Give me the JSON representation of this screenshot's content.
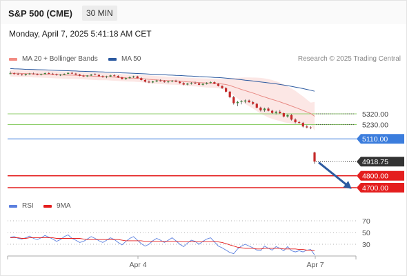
{
  "header": {
    "symbol": "S&P 500 (CME)",
    "timeframe": "30 MIN",
    "datetime": "Monday, April 7, 2025 5:41:18 AM CET",
    "credit": "Research © 2025 Trading Central"
  },
  "legend": {
    "ma20": {
      "label": "MA 20 + Bollinger Bands",
      "color": "#f28b82"
    },
    "ma50": {
      "label": "MA 50",
      "color": "#2c5aa0"
    },
    "rsi": {
      "label": "RSI",
      "color": "#5b7fde"
    },
    "ma9": {
      "label": "9MA",
      "color": "#e41e1e"
    }
  },
  "chart_data": [
    {
      "type": "candlestick",
      "x_ticks": [
        "Apr 4",
        "Apr 7"
      ],
      "levels": [
        {
          "value": 5320.0,
          "label": "5320.00",
          "kind": "resistance-target",
          "color": "#8fce6b"
        },
        {
          "value": 5230.0,
          "label": "5230.00",
          "kind": "resistance-target",
          "color": "#8fce6b"
        },
        {
          "value": 5110.0,
          "label": "5110.00",
          "kind": "pivot",
          "color": "#3b7ddd"
        },
        {
          "value": 4918.75,
          "label": "4918.75",
          "kind": "last-price",
          "color": "#333333"
        },
        {
          "value": 4800.0,
          "label": "4800.00",
          "kind": "support-target",
          "color": "#e41e1e"
        },
        {
          "value": 4700.0,
          "label": "4700.00",
          "kind": "support-target",
          "color": "#e41e1e"
        }
      ],
      "candles": [
        [
          5659,
          5676,
          5653,
          5660
        ],
        [
          5660,
          5668,
          5650,
          5655
        ],
        [
          5655,
          5664,
          5646,
          5650
        ],
        [
          5650,
          5657,
          5641,
          5645
        ],
        [
          5645,
          5658,
          5640,
          5653
        ],
        [
          5653,
          5663,
          5648,
          5658
        ],
        [
          5658,
          5666,
          5650,
          5652
        ],
        [
          5652,
          5660,
          5644,
          5648
        ],
        [
          5648,
          5658,
          5643,
          5654
        ],
        [
          5654,
          5666,
          5650,
          5662
        ],
        [
          5662,
          5670,
          5654,
          5657
        ],
        [
          5657,
          5664,
          5648,
          5652
        ],
        [
          5652,
          5658,
          5641,
          5645
        ],
        [
          5645,
          5654,
          5638,
          5649
        ],
        [
          5649,
          5660,
          5645,
          5656
        ],
        [
          5656,
          5668,
          5652,
          5664
        ],
        [
          5664,
          5672,
          5655,
          5658
        ],
        [
          5658,
          5664,
          5646,
          5650
        ],
        [
          5650,
          5655,
          5636,
          5640
        ],
        [
          5640,
          5648,
          5630,
          5635
        ],
        [
          5635,
          5645,
          5630,
          5642
        ],
        [
          5642,
          5655,
          5638,
          5650
        ],
        [
          5650,
          5660,
          5644,
          5647
        ],
        [
          5647,
          5652,
          5632,
          5636
        ],
        [
          5636,
          5643,
          5624,
          5628
        ],
        [
          5628,
          5640,
          5620,
          5634
        ],
        [
          5634,
          5648,
          5630,
          5643
        ],
        [
          5643,
          5652,
          5634,
          5638
        ],
        [
          5638,
          5644,
          5622,
          5626
        ],
        [
          5626,
          5632,
          5609,
          5612
        ],
        [
          5612,
          5626,
          5606,
          5620
        ],
        [
          5620,
          5634,
          5614,
          5628
        ],
        [
          5628,
          5640,
          5622,
          5634
        ],
        [
          5634,
          5640,
          5618,
          5620
        ],
        [
          5620,
          5628,
          5600,
          5604
        ],
        [
          5604,
          5612,
          5584,
          5590
        ],
        [
          5590,
          5600,
          5578,
          5584
        ],
        [
          5584,
          5598,
          5578,
          5592
        ],
        [
          5592,
          5606,
          5586,
          5600
        ],
        [
          5600,
          5610,
          5590,
          5594
        ],
        [
          5594,
          5602,
          5582,
          5586
        ],
        [
          5586,
          5598,
          5578,
          5592
        ],
        [
          5592,
          5604,
          5586,
          5598
        ],
        [
          5598,
          5606,
          5586,
          5590
        ],
        [
          5590,
          5596,
          5574,
          5578
        ],
        [
          5578,
          5586,
          5560,
          5566
        ],
        [
          5566,
          5580,
          5560,
          5574
        ],
        [
          5574,
          5586,
          5566,
          5580
        ],
        [
          5580,
          5590,
          5570,
          5576
        ],
        [
          5576,
          5584,
          5560,
          5564
        ],
        [
          5564,
          5578,
          5558,
          5572
        ],
        [
          5572,
          5586,
          5566,
          5580
        ],
        [
          5580,
          5592,
          5574,
          5586
        ],
        [
          5586,
          5592,
          5570,
          5572
        ],
        [
          5572,
          5578,
          5550,
          5554
        ],
        [
          5554,
          5560,
          5530,
          5536
        ],
        [
          5536,
          5544,
          5500,
          5506
        ],
        [
          5506,
          5512,
          5452,
          5460
        ],
        [
          5460,
          5470,
          5398,
          5410
        ],
        [
          5410,
          5430,
          5384,
          5420
        ],
        [
          5420,
          5436,
          5400,
          5424
        ],
        [
          5424,
          5440,
          5410,
          5432
        ],
        [
          5432,
          5440,
          5412,
          5418
        ],
        [
          5418,
          5430,
          5396,
          5404
        ],
        [
          5404,
          5412,
          5366,
          5372
        ],
        [
          5372,
          5380,
          5340,
          5350
        ],
        [
          5350,
          5372,
          5338,
          5364
        ],
        [
          5364,
          5376,
          5340,
          5346
        ],
        [
          5346,
          5354,
          5320,
          5328
        ],
        [
          5328,
          5346,
          5316,
          5338
        ],
        [
          5338,
          5352,
          5320,
          5326
        ],
        [
          5326,
          5330,
          5290,
          5298
        ],
        [
          5298,
          5316,
          5288,
          5310
        ],
        [
          5310,
          5318,
          5264,
          5272
        ],
        [
          5272,
          5282,
          5240,
          5250
        ],
        [
          5250,
          5262,
          5236,
          5244
        ],
        [
          5244,
          5252,
          5206,
          5214
        ],
        [
          5214,
          5226,
          5198,
          5206
        ],
        [
          5206,
          5216,
          5192,
          5204
        ],
        [
          4996,
          5002,
          4900,
          4918.75
        ]
      ],
      "ma20": [
        5662,
        5661,
        5660,
        5659,
        5658,
        5657,
        5656,
        5655,
        5654,
        5653,
        5652,
        5650,
        5648,
        5647,
        5646,
        5645,
        5645,
        5644,
        5643,
        5641,
        5639,
        5637,
        5635,
        5634,
        5633,
        5632,
        5630,
        5628,
        5626,
        5624,
        5622,
        5621,
        5620,
        5618,
        5616,
        5613,
        5610,
        5607,
        5605,
        5603,
        5601,
        5599,
        5598,
        5597,
        5595,
        5592,
        5589,
        5587,
        5585,
        5583,
        5581,
        5579,
        5578,
        5577,
        5575,
        5571,
        5566,
        5558,
        5547,
        5536,
        5525,
        5515,
        5505,
        5495,
        5484,
        5472,
        5462,
        5451,
        5441,
        5431,
        5421,
        5409,
        5398,
        5386,
        5374,
        5362,
        5349,
        5336,
        5323,
        5300
      ],
      "bb_upper": [
        5690,
        5690,
        5689,
        5688,
        5687,
        5686,
        5686,
        5685,
        5684,
        5683,
        5682,
        5680,
        5678,
        5677,
        5677,
        5677,
        5676,
        5675,
        5674,
        5672,
        5670,
        5668,
        5666,
        5665,
        5664,
        5662,
        5660,
        5658,
        5656,
        5654,
        5652,
        5651,
        5650,
        5648,
        5646,
        5644,
        5642,
        5640,
        5638,
        5636,
        5634,
        5632,
        5631,
        5630,
        5628,
        5626,
        5624,
        5622,
        5620,
        5619,
        5618,
        5617,
        5616,
        5615,
        5614,
        5614,
        5614,
        5616,
        5620,
        5622,
        5624,
        5626,
        5626,
        5625,
        5624,
        5622,
        5618,
        5612,
        5604,
        5594,
        5582,
        5568,
        5552,
        5534,
        5514,
        5490,
        5466,
        5440,
        5414,
        5420
      ],
      "bb_lower": [
        5634,
        5632,
        5631,
        5630,
        5629,
        5628,
        5626,
        5625,
        5624,
        5623,
        5622,
        5620,
        5618,
        5617,
        5615,
        5613,
        5614,
        5613,
        5612,
        5610,
        5608,
        5606,
        5604,
        5603,
        5602,
        5602,
        5600,
        5598,
        5596,
        5594,
        5592,
        5591,
        5590,
        5588,
        5586,
        5582,
        5578,
        5574,
        5572,
        5570,
        5568,
        5566,
        5565,
        5564,
        5562,
        5558,
        5554,
        5552,
        5550,
        5547,
        5544,
        5541,
        5540,
        5539,
        5536,
        5528,
        5518,
        5500,
        5474,
        5450,
        5426,
        5404,
        5384,
        5365,
        5344,
        5322,
        5306,
        5290,
        5278,
        5268,
        5260,
        5250,
        5244,
        5238,
        5234,
        5234,
        5232,
        5232,
        5232,
        5180
      ],
      "ma50": [
        5700,
        5698,
        5697,
        5696,
        5694,
        5693,
        5692,
        5691,
        5690,
        5689,
        5688,
        5686,
        5685,
        5684,
        5683,
        5682,
        5681,
        5680,
        5678,
        5677,
        5676,
        5675,
        5674,
        5673,
        5672,
        5670,
        5669,
        5667,
        5666,
        5664,
        5663,
        5662,
        5660,
        5659,
        5657,
        5656,
        5654,
        5652,
        5651,
        5649,
        5648,
        5646,
        5645,
        5643,
        5642,
        5640,
        5638,
        5637,
        5635,
        5633,
        5632,
        5630,
        5628,
        5626,
        5625,
        5623,
        5620,
        5617,
        5614,
        5610,
        5607,
        5603,
        5600,
        5596,
        5592,
        5588,
        5584,
        5580,
        5576,
        5572,
        5567,
        5562,
        5557,
        5551,
        5545,
        5539,
        5532,
        5525,
        5518,
        5510
      ]
    },
    {
      "type": "line",
      "name": "RSI",
      "ylim": [
        0,
        100
      ],
      "y_ticks": [
        70,
        50,
        30
      ],
      "rsi": [
        42,
        43,
        40,
        39,
        41,
        44,
        40,
        38,
        41,
        45,
        42,
        39,
        35,
        38,
        43,
        46,
        40,
        37,
        33,
        35,
        39,
        43,
        40,
        36,
        33,
        37,
        41,
        38,
        33,
        29,
        35,
        40,
        43,
        37,
        31,
        27,
        30,
        36,
        40,
        37,
        33,
        37,
        41,
        36,
        30,
        26,
        32,
        37,
        35,
        30,
        35,
        39,
        41,
        34,
        27,
        24,
        20,
        16,
        14,
        22,
        27,
        30,
        27,
        24,
        20,
        19,
        27,
        23,
        20,
        26,
        23,
        19,
        26,
        19,
        17,
        19,
        17,
        20,
        21,
        12
      ],
      "ma9": [
        41,
        41,
        41,
        40,
        40,
        41,
        41,
        41,
        41,
        41,
        41,
        41,
        40,
        40,
        40,
        40,
        40,
        40,
        40,
        39,
        38,
        38,
        38,
        38,
        38,
        38,
        38,
        38,
        38,
        37,
        36,
        36,
        36,
        36,
        36,
        35,
        35,
        35,
        35,
        35,
        35,
        35,
        35,
        35,
        35,
        34,
        34,
        34,
        34,
        34,
        34,
        34,
        34,
        35,
        34,
        33,
        31,
        29,
        27,
        25,
        24,
        23,
        23,
        23,
        22,
        22,
        23,
        23,
        23,
        23,
        23,
        22,
        22,
        22,
        22,
        21,
        21,
        20,
        20,
        19
      ]
    }
  ]
}
